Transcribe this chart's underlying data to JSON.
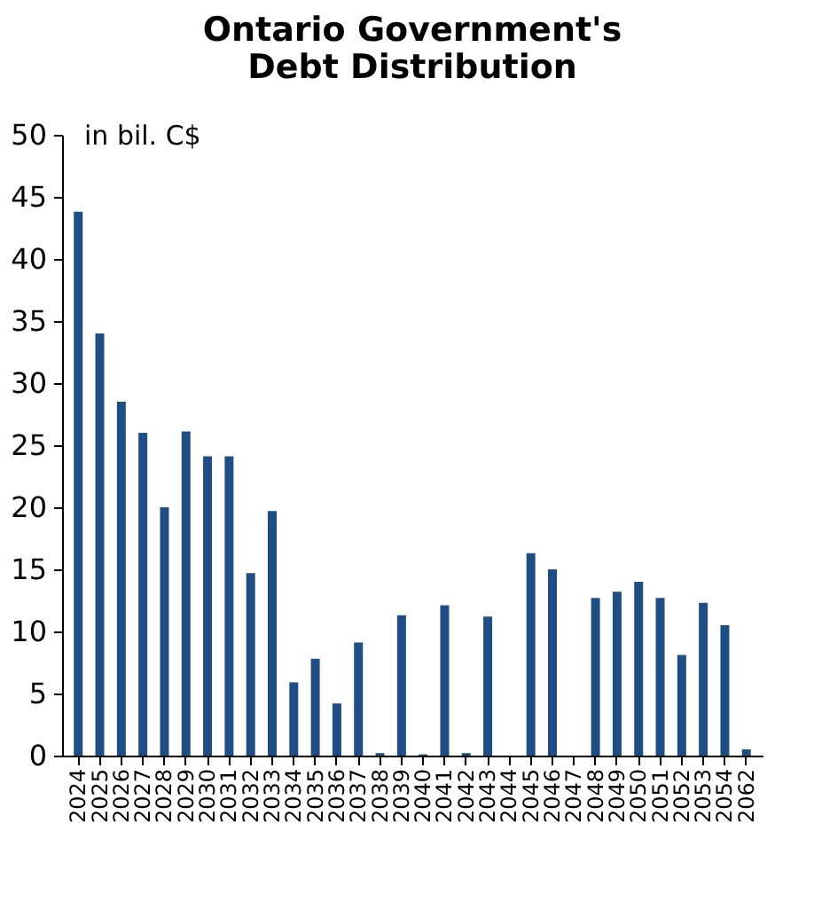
{
  "chart_data": {
    "type": "bar",
    "title": "Ontario Government's Debt Distribution",
    "ylabel": "in bil. C$",
    "categories": [
      "2024",
      "2025",
      "2026",
      "2027",
      "2028",
      "2029",
      "2030",
      "2031",
      "2032",
      "2033",
      "2034",
      "2035",
      "2036",
      "2037",
      "2038",
      "2039",
      "2040",
      "2041",
      "2042",
      "2043",
      "2044",
      "2045",
      "2046",
      "2047",
      "2048",
      "2049",
      "2050",
      "2051",
      "2052",
      "2053",
      "2054",
      "2062"
    ],
    "values": [
      43.8,
      34.0,
      28.5,
      26.0,
      20.0,
      26.1,
      24.1,
      24.1,
      14.7,
      19.7,
      5.9,
      7.8,
      4.2,
      9.1,
      0.2,
      11.3,
      0.1,
      12.1,
      0.2,
      11.2,
      0,
      16.3,
      15.0,
      0,
      12.7,
      13.2,
      14.0,
      12.7,
      8.1,
      12.3,
      10.5,
      0.5
    ],
    "color": "#1f4e85",
    "ylim": [
      0,
      50
    ],
    "yticks": [
      0,
      5,
      10,
      15,
      20,
      25,
      30,
      35,
      40,
      45,
      50
    ],
    "grid": false
  }
}
